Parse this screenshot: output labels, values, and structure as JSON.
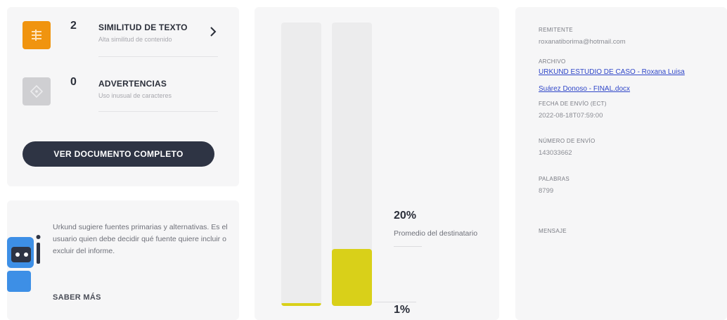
{
  "stats": {
    "items": [
      {
        "count": "2",
        "title": "SIMILITUD DE TEXTO",
        "subtitle": "Alta similitud de contenido",
        "icon": "similarity-icon",
        "color": "#f0940f"
      },
      {
        "count": "0",
        "title": "ADVERTENCIAS",
        "subtitle": "Uso inusual de caracteres",
        "icon": "warning-diamond-icon",
        "color": "#cfcfd2"
      }
    ],
    "button_label": "VER DOCUMENTO COMPLETO"
  },
  "info": {
    "text": "Urkund sugiere fuentes primarias y alternativas. Es el usuario quien debe decidir qué fuente quiere incluir o excluir del informe.",
    "link_label": "SABER MÁS"
  },
  "chart_data": {
    "type": "bar",
    "categories": [
      "",
      ""
    ],
    "values": [
      1,
      20
    ],
    "ylim": [
      0,
      100
    ],
    "labels": [
      {
        "value": "20%",
        "caption": "Promedio del destinatario"
      },
      {
        "value": "1%",
        "caption": ""
      }
    ],
    "colors": {
      "fill": "#d9d019",
      "track": "#ececed"
    }
  },
  "meta": {
    "sender_label": "REMITENTE",
    "sender_value": "roxanatiborima@hotmail.com",
    "file_label": "ARCHIVO",
    "file_line1": "URKUND ESTUDIO DE CASO - Roxana Luisa",
    "file_line2": "Suárez Donoso - FINAL.docx",
    "date_label": "FECHA DE ENVÍO (ECT)",
    "date_value": "2022-08-18T07:59:00",
    "number_label": "NÚMERO DE ENVÍO",
    "number_value": "143033662",
    "words_label": "PALABRAS",
    "words_value": "8799",
    "message_label": "MENSAJE"
  }
}
